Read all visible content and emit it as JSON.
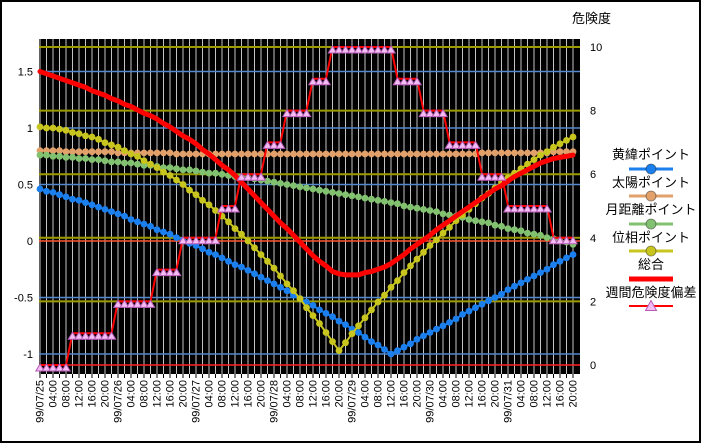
{
  "right_axis_title": "危険度",
  "colors": {
    "plot_background": "#000000",
    "vertical_grid": "#C3C3C3",
    "right_grid_olive": "#9C9C00",
    "left_grid_blue": "#5588CC",
    "left_zero_line": "#FF5533",
    "right_zero_line": "#FF2222",
    "tick": "#000000"
  },
  "legend": {
    "items": [
      {
        "label": "黄緯ポイント",
        "marker": "circle"
      },
      {
        "label": "太陽ポイント",
        "marker": "circle"
      },
      {
        "label": "月距離ポイント",
        "marker": "circle"
      },
      {
        "label": "位相ポイント",
        "marker": "circle"
      },
      {
        "label": "総合",
        "marker": "thick-line"
      },
      {
        "label": "週間危険度偏差",
        "marker": "triangle"
      }
    ]
  },
  "chart_data": {
    "type": "line",
    "x_start": "99/07/25 00:00",
    "x_interval_hours": 2,
    "x_points": 83,
    "x_tick_labels": [
      "99/07/25",
      "04:00",
      "08:00",
      "12:00",
      "16:00",
      "20:00",
      "99/07/26",
      "04:00",
      "08:00",
      "12:00",
      "16:00",
      "20:00",
      "99/07/27",
      "04:00",
      "08:00",
      "12:00",
      "16:00",
      "20:00",
      "99/07/28",
      "04:00",
      "08:00",
      "12:00",
      "16:00",
      "20:00",
      "99/07/29",
      "04:00",
      "08:00",
      "12:00",
      "16:00",
      "20:00",
      "99/07/30",
      "04:00",
      "08:00",
      "12:00",
      "16:00",
      "20:00",
      "99/07/31",
      "04:00",
      "08:00",
      "12:00",
      "16:00",
      "20:00"
    ],
    "left_axis": {
      "tick_labels": [
        "1.5",
        "1",
        "0.5",
        "0",
        "-0.5",
        "-1"
      ],
      "tick_values": [
        1.5,
        1,
        0.5,
        0,
        -0.5,
        -1
      ],
      "range": [
        -1.18,
        1.79
      ]
    },
    "right_axis": {
      "label": "危険度",
      "tick_labels": [
        "10",
        "8",
        "6",
        "4",
        "2",
        "0"
      ],
      "tick_values": [
        10,
        8,
        6,
        4,
        2,
        0
      ],
      "range": [
        -0.28,
        10.25
      ]
    },
    "grid": {
      "vertical_every_hours": 2,
      "olive_lines_right_values": [
        10,
        8,
        6,
        4,
        2
      ],
      "blue_lines_left_values": [
        1.5,
        1,
        0.5,
        -0.5,
        -1
      ]
    },
    "legend_position": "right",
    "series": [
      {
        "name": "黄緯ポイント",
        "axis": "left",
        "color": "#1B7FEE",
        "marker": "circle",
        "line_width": 2,
        "values": [
          0.46,
          0.44,
          0.43,
          0.41,
          0.39,
          0.37,
          0.36,
          0.34,
          0.32,
          0.3,
          0.28,
          0.26,
          0.24,
          0.22,
          0.19,
          0.17,
          0.15,
          0.13,
          0.1,
          0.08,
          0.06,
          0.03,
          0.01,
          -0.02,
          -0.04,
          -0.07,
          -0.1,
          -0.12,
          -0.15,
          -0.18,
          -0.21,
          -0.23,
          -0.26,
          -0.29,
          -0.32,
          -0.35,
          -0.38,
          -0.41,
          -0.44,
          -0.48,
          -0.51,
          -0.54,
          -0.57,
          -0.61,
          -0.64,
          -0.67,
          -0.71,
          -0.74,
          -0.78,
          -0.81,
          -0.85,
          -0.89,
          -0.92,
          -0.96,
          -1.0,
          -0.97,
          -0.94,
          -0.91,
          -0.87,
          -0.84,
          -0.81,
          -0.78,
          -0.75,
          -0.72,
          -0.69,
          -0.65,
          -0.62,
          -0.59,
          -0.56,
          -0.53,
          -0.5,
          -0.47,
          -0.43,
          -0.4,
          -0.37,
          -0.34,
          -0.31,
          -0.28,
          -0.25,
          -0.21,
          -0.18,
          -0.15,
          -0.12
        ]
      },
      {
        "name": "太陽ポイント",
        "axis": "left",
        "color": "#E2A16B",
        "marker": "circle",
        "line_width": 2,
        "values": [
          0.8,
          0.8,
          0.8,
          0.8,
          0.79,
          0.79,
          0.79,
          0.79,
          0.79,
          0.79,
          0.79,
          0.79,
          0.78,
          0.78,
          0.78,
          0.78,
          0.78,
          0.78,
          0.78,
          0.78,
          0.78,
          0.77,
          0.77,
          0.77,
          0.77,
          0.77,
          0.77,
          0.77,
          0.77,
          0.77,
          0.77,
          0.77,
          0.77,
          0.77,
          0.77,
          0.77,
          0.77,
          0.77,
          0.77,
          0.77,
          0.77,
          0.77,
          0.77,
          0.77,
          0.77,
          0.77,
          0.77,
          0.77,
          0.77,
          0.77,
          0.77,
          0.77,
          0.77,
          0.77,
          0.77,
          0.77,
          0.77,
          0.77,
          0.77,
          0.77,
          0.77,
          0.77,
          0.77,
          0.77,
          0.77,
          0.77,
          0.77,
          0.77,
          0.78,
          0.78,
          0.78,
          0.78,
          0.78,
          0.78,
          0.78,
          0.78,
          0.78,
          0.78,
          0.78,
          0.79,
          0.79,
          0.79,
          0.79
        ]
      },
      {
        "name": "月距離ポイント",
        "axis": "left",
        "color": "#82C170",
        "marker": "circle",
        "line_width": 2,
        "values": [
          0.76,
          0.76,
          0.75,
          0.75,
          0.74,
          0.74,
          0.73,
          0.73,
          0.72,
          0.72,
          0.71,
          0.7,
          0.7,
          0.69,
          0.69,
          0.68,
          0.67,
          0.67,
          0.66,
          0.65,
          0.65,
          0.64,
          0.63,
          0.63,
          0.62,
          0.61,
          0.6,
          0.6,
          0.59,
          0.58,
          0.57,
          0.57,
          0.56,
          0.55,
          0.54,
          0.53,
          0.52,
          0.51,
          0.5,
          0.49,
          0.48,
          0.47,
          0.46,
          0.45,
          0.44,
          0.43,
          0.42,
          0.41,
          0.4,
          0.39,
          0.38,
          0.37,
          0.36,
          0.35,
          0.34,
          0.33,
          0.31,
          0.3,
          0.29,
          0.28,
          0.27,
          0.26,
          0.24,
          0.23,
          0.22,
          0.21,
          0.19,
          0.18,
          0.17,
          0.16,
          0.14,
          0.13,
          0.11,
          0.1,
          0.09,
          0.07,
          0.06,
          0.05,
          0.03,
          0.02,
          0.0,
          -0.01,
          -0.03
        ]
      },
      {
        "name": "位相ポイント",
        "axis": "left",
        "color": "#C8C51F",
        "marker": "circle",
        "line_width": 2,
        "values": [
          1.01,
          1.0,
          1.0,
          0.99,
          0.98,
          0.96,
          0.95,
          0.93,
          0.92,
          0.9,
          0.87,
          0.85,
          0.83,
          0.8,
          0.77,
          0.75,
          0.71,
          0.68,
          0.65,
          0.61,
          0.58,
          0.54,
          0.5,
          0.45,
          0.41,
          0.36,
          0.32,
          0.27,
          0.22,
          0.17,
          0.11,
          0.06,
          0.0,
          -0.06,
          -0.12,
          -0.18,
          -0.24,
          -0.31,
          -0.38,
          -0.44,
          -0.51,
          -0.59,
          -0.66,
          -0.73,
          -0.81,
          -0.89,
          -0.97,
          -0.9,
          -0.82,
          -0.75,
          -0.68,
          -0.61,
          -0.54,
          -0.48,
          -0.41,
          -0.35,
          -0.28,
          -0.22,
          -0.16,
          -0.1,
          -0.04,
          0.01,
          0.07,
          0.12,
          0.18,
          0.23,
          0.28,
          0.33,
          0.38,
          0.42,
          0.47,
          0.52,
          0.56,
          0.6,
          0.64,
          0.68,
          0.72,
          0.76,
          0.79,
          0.83,
          0.86,
          0.89,
          0.92
        ]
      },
      {
        "name": "総合",
        "axis": "left",
        "color": "#FF0000",
        "marker": "none",
        "line_width": 5,
        "values": [
          1.5,
          1.48,
          1.46,
          1.44,
          1.42,
          1.4,
          1.38,
          1.36,
          1.33,
          1.31,
          1.29,
          1.26,
          1.24,
          1.21,
          1.19,
          1.16,
          1.13,
          1.11,
          1.08,
          1.04,
          1.01,
          0.97,
          0.93,
          0.9,
          0.86,
          0.81,
          0.77,
          0.72,
          0.67,
          0.63,
          0.58,
          0.52,
          0.46,
          0.4,
          0.34,
          0.28,
          0.22,
          0.16,
          0.11,
          0.05,
          -0.01,
          -0.07,
          -0.13,
          -0.18,
          -0.22,
          -0.27,
          -0.29,
          -0.3,
          -0.3,
          -0.3,
          -0.28,
          -0.27,
          -0.25,
          -0.23,
          -0.2,
          -0.16,
          -0.12,
          -0.07,
          -0.03,
          0.01,
          0.05,
          0.1,
          0.14,
          0.18,
          0.22,
          0.26,
          0.3,
          0.34,
          0.38,
          0.42,
          0.46,
          0.49,
          0.53,
          0.57,
          0.6,
          0.63,
          0.66,
          0.69,
          0.71,
          0.73,
          0.74,
          0.75,
          0.76
        ]
      },
      {
        "name": "週間危険度偏差",
        "axis": "right",
        "color": "#FF0000",
        "marker": "triangle",
        "marker_fill": "#F3BCF3",
        "marker_stroke": "#B75CB7",
        "line_width": 2,
        "values": [
          0,
          0,
          0,
          0,
          0,
          1,
          1,
          1,
          1,
          1,
          1,
          1,
          2,
          2,
          2,
          2,
          2,
          2,
          3,
          3,
          3,
          3,
          4,
          4,
          4,
          4,
          4,
          4,
          5,
          5,
          5,
          6,
          6,
          6,
          6,
          7,
          7,
          7,
          8,
          8,
          8,
          8,
          9,
          9,
          9,
          10,
          10,
          10,
          10,
          10,
          10,
          10,
          10,
          10,
          10,
          9,
          9,
          9,
          9,
          8,
          8,
          8,
          8,
          7,
          7,
          7,
          7,
          7,
          6,
          6,
          6,
          6,
          5,
          5,
          5,
          5,
          5,
          5,
          5,
          4,
          4,
          4,
          4
        ]
      }
    ]
  }
}
